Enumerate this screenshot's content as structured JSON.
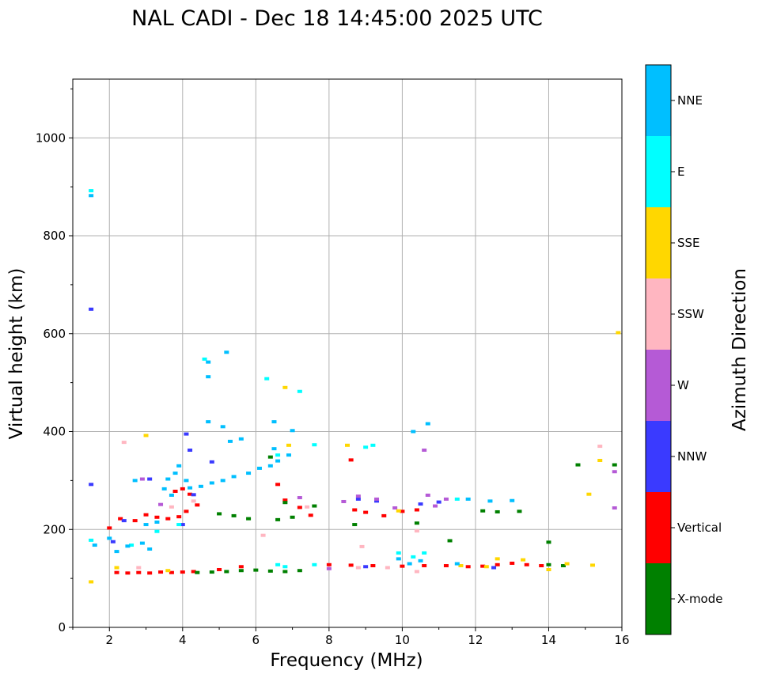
{
  "chart_data": {
    "type": "scatter",
    "title": "NAL CADI - Dec 18 14:45:00 2025 UTC",
    "xlabel": "Frequency (MHz)",
    "ylabel": "Virtual height (km)",
    "xlim": [
      1,
      16
    ],
    "ylim": [
      0,
      1120
    ],
    "x_ticks": [
      "2",
      "4",
      "6",
      "8",
      "10",
      "12",
      "14",
      "16"
    ],
    "y_ticks": [
      "0",
      "200",
      "400",
      "600",
      "800",
      "1000"
    ],
    "grid": true,
    "colorbar": {
      "label": "Azimuth Direction",
      "categories": [
        {
          "name": "X-mode",
          "color": "#008000"
        },
        {
          "name": "Vertical",
          "color": "#ff0000"
        },
        {
          "name": "NNW",
          "color": "#3a3aff"
        },
        {
          "name": "W",
          "color": "#b55ad6"
        },
        {
          "name": "SSW",
          "color": "#ffb6c1"
        },
        {
          "name": "SSE",
          "color": "#ffd700"
        },
        {
          "name": "E",
          "color": "#00ffff"
        },
        {
          "name": "NNE",
          "color": "#00bfff"
        }
      ]
    },
    "series": [
      {
        "name": "Vertical",
        "points": [
          [
            2.2,
            112
          ],
          [
            2.5,
            111
          ],
          [
            2.8,
            112
          ],
          [
            3.1,
            111
          ],
          [
            3.4,
            113
          ],
          [
            3.7,
            112
          ],
          [
            4.0,
            113
          ],
          [
            4.3,
            114
          ],
          [
            5.0,
            118
          ],
          [
            5.6,
            124
          ],
          [
            8.0,
            128
          ],
          [
            8.6,
            127
          ],
          [
            9.2,
            126
          ],
          [
            10.0,
            125
          ],
          [
            10.6,
            126
          ],
          [
            11.2,
            126
          ],
          [
            11.8,
            124
          ],
          [
            12.2,
            125
          ],
          [
            12.6,
            128
          ],
          [
            13.0,
            131
          ],
          [
            13.4,
            128
          ],
          [
            13.8,
            126
          ],
          [
            2.3,
            222
          ],
          [
            2.7,
            218
          ],
          [
            3.0,
            230
          ],
          [
            3.3,
            225
          ],
          [
            3.6,
            222
          ],
          [
            3.9,
            226
          ],
          [
            4.1,
            237
          ],
          [
            4.0,
            283
          ],
          [
            3.8,
            278
          ],
          [
            4.2,
            272
          ],
          [
            6.8,
            260
          ],
          [
            7.2,
            245
          ],
          [
            8.7,
            240
          ],
          [
            9.0,
            235
          ],
          [
            9.5,
            228
          ],
          [
            10.0,
            237
          ],
          [
            10.4,
            240
          ],
          [
            8.6,
            342
          ],
          [
            6.6,
            292
          ],
          [
            2.0,
            203
          ],
          [
            7.5,
            229
          ],
          [
            4.4,
            250
          ]
        ]
      },
      {
        "name": "X-mode",
        "points": [
          [
            4.4,
            112
          ],
          [
            4.8,
            113
          ],
          [
            5.2,
            114
          ],
          [
            5.6,
            116
          ],
          [
            6.0,
            117
          ],
          [
            6.4,
            115
          ],
          [
            6.8,
            114
          ],
          [
            7.2,
            116
          ],
          [
            14.0,
            128
          ],
          [
            14.4,
            126
          ],
          [
            13.2,
            237
          ],
          [
            12.6,
            236
          ],
          [
            12.2,
            238
          ],
          [
            5.0,
            232
          ],
          [
            5.4,
            228
          ],
          [
            5.8,
            222
          ],
          [
            6.6,
            220
          ],
          [
            7.0,
            225
          ],
          [
            7.6,
            248
          ],
          [
            6.8,
            255
          ],
          [
            14.8,
            332
          ],
          [
            15.8,
            332
          ],
          [
            6.4,
            348
          ],
          [
            11.3,
            177
          ],
          [
            14.0,
            174
          ],
          [
            8.7,
            210
          ],
          [
            10.4,
            213
          ]
        ]
      },
      {
        "name": "NNW",
        "points": [
          [
            1.5,
            650
          ],
          [
            1.5,
            292
          ],
          [
            2.4,
            218
          ],
          [
            4.0,
            210
          ],
          [
            4.2,
            362
          ],
          [
            4.8,
            338
          ],
          [
            3.1,
            303
          ],
          [
            8.8,
            262
          ],
          [
            9.3,
            258
          ],
          [
            10.5,
            252
          ],
          [
            11.0,
            256
          ],
          [
            12.5,
            122
          ],
          [
            9.0,
            124
          ],
          [
            4.3,
            271
          ],
          [
            2.1,
            175
          ],
          [
            4.1,
            395
          ]
        ]
      },
      {
        "name": "W",
        "points": [
          [
            2.9,
            303
          ],
          [
            3.4,
            251
          ],
          [
            8.4,
            257
          ],
          [
            8.8,
            268
          ],
          [
            9.3,
            262
          ],
          [
            10.7,
            270
          ],
          [
            10.9,
            248
          ],
          [
            11.2,
            262
          ],
          [
            10.6,
            362
          ],
          [
            7.2,
            265
          ],
          [
            15.8,
            318
          ],
          [
            15.8,
            244
          ],
          [
            9.8,
            244
          ],
          [
            8.0,
            120
          ]
        ]
      },
      {
        "name": "SSW",
        "points": [
          [
            2.4,
            378
          ],
          [
            4.3,
            258
          ],
          [
            8.8,
            122
          ],
          [
            9.6,
            122
          ],
          [
            7.4,
            246
          ],
          [
            10.4,
            197
          ],
          [
            15.4,
            370
          ],
          [
            8.9,
            165
          ],
          [
            6.2,
            188
          ],
          [
            3.7,
            246
          ],
          [
            2.8,
            122
          ],
          [
            10.4,
            114
          ]
        ]
      },
      {
        "name": "SSE",
        "points": [
          [
            2.2,
            122
          ],
          [
            3.6,
            116
          ],
          [
            6.8,
            490
          ],
          [
            6.9,
            372
          ],
          [
            8.5,
            372
          ],
          [
            12.3,
            124
          ],
          [
            12.6,
            140
          ],
          [
            13.3,
            138
          ],
          [
            14.0,
            118
          ],
          [
            15.2,
            127
          ],
          [
            15.4,
            341
          ],
          [
            15.1,
            272
          ],
          [
            15.9,
            602
          ],
          [
            3.0,
            392
          ],
          [
            9.9,
            238
          ],
          [
            1.5,
            93
          ],
          [
            14.5,
            130
          ],
          [
            11.6,
            126
          ]
        ]
      },
      {
        "name": "E",
        "points": [
          [
            1.5,
            892
          ],
          [
            2.6,
            168
          ],
          [
            3.3,
            196
          ],
          [
            6.6,
            128
          ],
          [
            6.8,
            124
          ],
          [
            7.6,
            128
          ],
          [
            7.2,
            482
          ],
          [
            9.0,
            368
          ],
          [
            9.2,
            372
          ],
          [
            10.3,
            144
          ],
          [
            10.6,
            152
          ],
          [
            6.6,
            352
          ],
          [
            7.6,
            373
          ],
          [
            3.9,
            210
          ],
          [
            1.5,
            178
          ],
          [
            4.6,
            548
          ],
          [
            6.3,
            508
          ],
          [
            11.5,
            262
          ],
          [
            9.9,
            152
          ]
        ]
      },
      {
        "name": "NNE",
        "points": [
          [
            1.5,
            882
          ],
          [
            1.6,
            168
          ],
          [
            2.0,
            182
          ],
          [
            2.2,
            155
          ],
          [
            2.5,
            166
          ],
          [
            2.9,
            172
          ],
          [
            3.1,
            160
          ],
          [
            3.3,
            215
          ],
          [
            3.6,
            303
          ],
          [
            3.8,
            315
          ],
          [
            3.5,
            283
          ],
          [
            3.7,
            270
          ],
          [
            4.2,
            285
          ],
          [
            4.5,
            288
          ],
          [
            4.8,
            295
          ],
          [
            5.1,
            300
          ],
          [
            5.4,
            308
          ],
          [
            5.8,
            315
          ],
          [
            6.1,
            325
          ],
          [
            6.4,
            330
          ],
          [
            6.6,
            340
          ],
          [
            6.9,
            352
          ],
          [
            6.5,
            365
          ],
          [
            4.7,
            512
          ],
          [
            4.7,
            542
          ],
          [
            5.2,
            562
          ],
          [
            5.1,
            410
          ],
          [
            4.7,
            420
          ],
          [
            6.5,
            420
          ],
          [
            9.9,
            140
          ],
          [
            10.2,
            130
          ],
          [
            10.5,
            136
          ],
          [
            11.5,
            130
          ],
          [
            11.8,
            262
          ],
          [
            12.4,
            258
          ],
          [
            13.0,
            259
          ],
          [
            10.3,
            400
          ],
          [
            10.7,
            416
          ],
          [
            7.0,
            402
          ],
          [
            5.6,
            385
          ],
          [
            3.0,
            210
          ],
          [
            2.7,
            300
          ],
          [
            3.9,
            330
          ],
          [
            4.1,
            300
          ],
          [
            5.3,
            380
          ]
        ]
      }
    ]
  }
}
